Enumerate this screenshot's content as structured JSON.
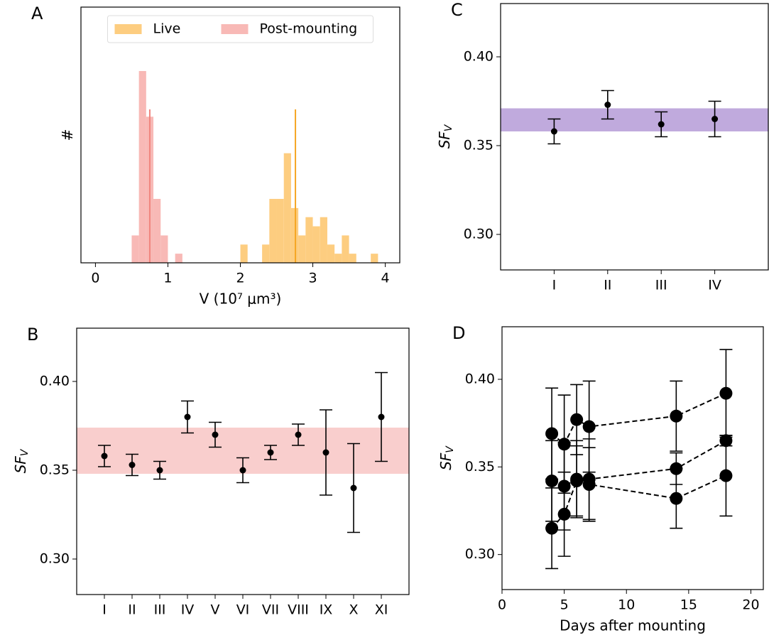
{
  "chart_data": [
    {
      "type": "histogram",
      "label": "A",
      "xlabel": "V (10⁷ μm³)",
      "ylabel": "#",
      "xlim": [
        -0.2,
        4.2
      ],
      "ylim": [
        0,
        28
      ],
      "xticks": [
        0,
        1,
        2,
        3,
        4
      ],
      "legend": "upper center",
      "bins": [
        0.5,
        0.6,
        0.7,
        0.8,
        0.9,
        1.0,
        1.1,
        1.2,
        1.3,
        1.4,
        1.5,
        1.6,
        1.7,
        1.8,
        1.9,
        2.0,
        2.1,
        2.2,
        2.3,
        2.4,
        2.5,
        2.6,
        2.7,
        2.8,
        2.9,
        3.0,
        3.1,
        3.2,
        3.3,
        3.4,
        3.5,
        3.6,
        3.7,
        3.8,
        3.9
      ],
      "series": [
        {
          "name": "Live",
          "color": "#fdcd80",
          "line_color": "#f5a623",
          "line_x": 2.76,
          "values": [
            0,
            0,
            0,
            0,
            0,
            0,
            0,
            0,
            0,
            0,
            0,
            0,
            0,
            0,
            0,
            2,
            0,
            0,
            2,
            7,
            7,
            12,
            6,
            3,
            5,
            4,
            5,
            2,
            1,
            3,
            1,
            0,
            0,
            1
          ]
        },
        {
          "name": "Post-mounting",
          "color": "#f8b9b6",
          "line_color": "#f0857f",
          "line_x": 0.75,
          "values": [
            3,
            21,
            16,
            7,
            3,
            0,
            1,
            0,
            0,
            0,
            0,
            0,
            0,
            0,
            0,
            0,
            0,
            0,
            0,
            0,
            0,
            0,
            0,
            0,
            0,
            0,
            0,
            0,
            0,
            0,
            0,
            0,
            0,
            0
          ]
        }
      ]
    },
    {
      "type": "errorbar",
      "label": "B",
      "ylabel": "SF",
      "ylabel_sub": "V",
      "categories": [
        "I",
        "II",
        "III",
        "IV",
        "V",
        "VI",
        "VII",
        "VIII",
        "IX",
        "X",
        "XI"
      ],
      "values": [
        0.358,
        0.353,
        0.35,
        0.38,
        0.37,
        0.35,
        0.36,
        0.37,
        0.36,
        0.34,
        0.38
      ],
      "errors": [
        0.006,
        0.006,
        0.005,
        0.009,
        0.007,
        0.007,
        0.004,
        0.006,
        0.024,
        0.025,
        0.025
      ],
      "color": "#000000",
      "band": [
        0.348,
        0.374
      ],
      "band_color": "#f8c6c4",
      "ylim": [
        0.28,
        0.43
      ],
      "yticks": [
        {
          "value": 0.3,
          "label": "0.30"
        },
        {
          "value": 0.35,
          "label": "0.35"
        },
        {
          "value": 0.4,
          "label": "0.40"
        }
      ]
    },
    {
      "type": "errorbar",
      "label": "C",
      "ylabel": "SF",
      "ylabel_sub": "V",
      "categories": [
        "I",
        "II",
        "III",
        "IV"
      ],
      "values": [
        0.358,
        0.373,
        0.362,
        0.365
      ],
      "errors": [
        0.007,
        0.008,
        0.007,
        0.01
      ],
      "color": "#000000",
      "band": [
        0.358,
        0.371
      ],
      "band_color": "#b59bd7",
      "ylim": [
        0.28,
        0.43
      ],
      "yticks": [
        {
          "value": 0.3,
          "label": "0.30"
        },
        {
          "value": 0.35,
          "label": "0.35"
        },
        {
          "value": 0.4,
          "label": "0.40"
        }
      ]
    },
    {
      "type": "line",
      "label": "D",
      "xlabel": "Days after mounting",
      "ylabel": "SF",
      "ylabel_sub": "V",
      "x": [
        4,
        5,
        6,
        7,
        14,
        18
      ],
      "series": [
        {
          "color": "#000000",
          "values": [
            0.369,
            0.363,
            0.377,
            0.373,
            0.379,
            0.392
          ],
          "errors": [
            0.026,
            0.028,
            0.02,
            0.026,
            0.02,
            0.025
          ]
        },
        {
          "color": "#000000",
          "values": [
            0.342,
            0.339,
            0.343,
            0.343,
            0.349,
            0.365
          ],
          "errors": [
            0.023,
            0.025,
            0.022,
            0.023,
            0.009,
            0.003
          ]
        },
        {
          "color": "#000000",
          "values": [
            0.315,
            0.323,
            0.342,
            0.34,
            0.332,
            0.345
          ],
          "errors": [
            0.023,
            0.024,
            0.02,
            0.021,
            0.017,
            0.023
          ]
        }
      ],
      "xlim": [
        0,
        21
      ],
      "ylim": [
        0.28,
        0.43
      ],
      "xticks": [
        0,
        5,
        10,
        15,
        20
      ],
      "yticks": [
        {
          "value": 0.3,
          "label": "0.30"
        },
        {
          "value": 0.35,
          "label": "0.35"
        },
        {
          "value": 0.4,
          "label": "0.40"
        }
      ]
    }
  ]
}
